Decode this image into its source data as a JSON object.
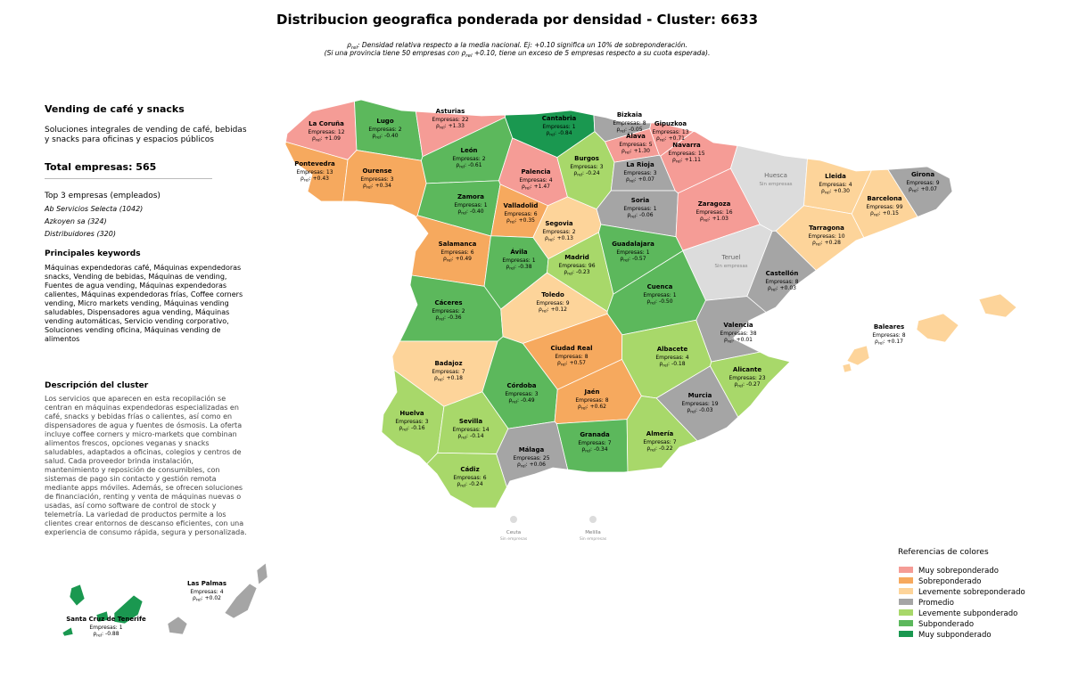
{
  "header": {
    "title": "Distribucion geografica ponderada por densidad - Cluster: 6633",
    "note_lines": [
      [
        {
          "t": "ρ"
        },
        {
          "t": "rel",
          "sub": true
        },
        {
          "t": ": Densidad relativa respecto a la media nacional. Ej: +0.10 significa un 10% de sobreponderación."
        }
      ],
      [
        {
          "t": "(Si una provincia tiene 50 empresas con "
        },
        {
          "t": "ρ"
        },
        {
          "t": "rel",
          "sub": true
        },
        {
          "t": " +0.10, tiene un exceso de 5 empresas respecto a su cuota esperada)."
        }
      ]
    ]
  },
  "panel": {
    "title": "Vending de café y snacks",
    "intro": "Soluciones integrales de vending de café, bebidas y snacks para oficinas y espacios públicos",
    "total": "Total empresas: 565",
    "top_title": "Top 3 empresas (empleados)",
    "top": [
      "Ab Servicios Selecta (1042)",
      "Azkoyen sa (324)",
      "Distribuidores (320)"
    ],
    "keywords_title": "Principales keywords",
    "keywords": "Máquinas expendedoras café, Máquinas expendedoras snacks, Vending de bebidas, Máquinas de vending, Fuentes de agua vending, Máquinas expendedoras calientes, Máquinas expendedoras frías, Coffee corners vending, Micro markets vending, Máquinas vending saludables, Dispensadores agua vending, Máquinas vending automáticas, Servicio vending corporativo, Soluciones vending oficina, Máquinas vending de alimentos",
    "description_title": "Descripción del cluster",
    "description": "Los servicios que aparecen en esta recopilación se centran en máquinas expendedoras especializadas en café, snacks y bebidas frías o calientes, así como en dispensadores de agua y fuentes de ósmosis. La oferta incluye coffee corners y micro-markets que combinan alimentos frescos, opciones veganas y snacks saludables, adaptados a oficinas, colegios y centros de salud. Cada proveedor brinda instalación, mantenimiento y reposición de consumibles, con sistemas de pago sin contacto y gestión remota mediante apps móviles. Además, se ofrecen soluciones de financiación, renting y venta de máquinas nuevas o usadas, así como software de control de stock y telemetría. La variedad de productos permite a los clientes crear entornos de descanso eficientes, con una experiencia de consumo rápida, segura y personalizada."
  },
  "map": {
    "empresas_label": "Empresas:",
    "rho_label": {
      "symbol": "ρ",
      "sub": "rel",
      "after": ":"
    },
    "provinces": [
      {
        "name": "La Coruña",
        "empresas": 12,
        "rho": "+1.09",
        "color": "#f59c96"
      },
      {
        "name": "Lugo",
        "empresas": 2,
        "rho": "-0.40",
        "color": "#5cb85c"
      },
      {
        "name": "Asturias",
        "empresas": 22,
        "rho": "+1.33",
        "color": "#f59c96"
      },
      {
        "name": "Cantabria",
        "empresas": 1,
        "rho": "-0.84",
        "color": "#1a9850"
      },
      {
        "name": "Bizkaia",
        "empresas": 8,
        "rho": "-0.05",
        "color": "#a5a5a5"
      },
      {
        "name": "Gipuzkoa",
        "empresas": 13,
        "rho": "+0.71",
        "color": "#f59c96"
      },
      {
        "name": "Álava",
        "empresas": 5,
        "rho": "+1.30",
        "color": "#f59c96"
      },
      {
        "name": "Navarra",
        "empresas": 15,
        "rho": "+1.11",
        "color": "#f59c96"
      },
      {
        "name": "Pontevedra",
        "empresas": 13,
        "rho": "+0.43",
        "color": "#f6a95e"
      },
      {
        "name": "Ourense",
        "empresas": 3,
        "rho": "+0.34",
        "color": "#f6a95e"
      },
      {
        "name": "León",
        "empresas": 2,
        "rho": "-0.61",
        "color": "#5cb85c"
      },
      {
        "name": "Palencia",
        "empresas": 4,
        "rho": "+1.47",
        "color": "#f59c96"
      },
      {
        "name": "Burgos",
        "empresas": 3,
        "rho": "-0.24",
        "color": "#a8d86a"
      },
      {
        "name": "La Rioja",
        "empresas": 3,
        "rho": "+0.07",
        "color": "#a5a5a5"
      },
      {
        "name": "Huesca",
        "note": "Sin empresas",
        "color": "#dcdcdc"
      },
      {
        "name": "Lleida",
        "empresas": 4,
        "rho": "+0.30",
        "color": "#fdd49a"
      },
      {
        "name": "Girona",
        "empresas": 9,
        "rho": "+0.07",
        "color": "#a5a5a5"
      },
      {
        "name": "Zamora",
        "empresas": 1,
        "rho": "-0.40",
        "color": "#5cb85c"
      },
      {
        "name": "Valladolid",
        "empresas": 6,
        "rho": "+0.35",
        "color": "#f6a95e"
      },
      {
        "name": "Soria",
        "empresas": 1,
        "rho": "-0.06",
        "color": "#a5a5a5"
      },
      {
        "name": "Zaragoza",
        "empresas": 16,
        "rho": "+1.03",
        "color": "#f59c96"
      },
      {
        "name": "Barcelona",
        "empresas": 99,
        "rho": "+0.15",
        "color": "#fdd49a"
      },
      {
        "name": "Tarragona",
        "empresas": 10,
        "rho": "+0.28",
        "color": "#fdd49a"
      },
      {
        "name": "Salamanca",
        "empresas": 6,
        "rho": "+0.49",
        "color": "#f6a95e"
      },
      {
        "name": "Segovia",
        "empresas": 2,
        "rho": "+0.13",
        "color": "#fdd49a"
      },
      {
        "name": "Ávila",
        "empresas": 1,
        "rho": "-0.38",
        "color": "#5cb85c"
      },
      {
        "name": "Madrid",
        "empresas": 96,
        "rho": "-0.23",
        "color": "#a8d86a"
      },
      {
        "name": "Guadalajara",
        "empresas": 1,
        "rho": "-0.57",
        "color": "#5cb85c"
      },
      {
        "name": "Teruel",
        "note": "Sin empresas",
        "color": "#dcdcdc"
      },
      {
        "name": "Castellón",
        "empresas": 8,
        "rho": "+0.03",
        "color": "#a5a5a5"
      },
      {
        "name": "Cáceres",
        "empresas": 2,
        "rho": "-0.36",
        "color": "#5cb85c"
      },
      {
        "name": "Toledo",
        "empresas": 9,
        "rho": "+0.12",
        "color": "#fdd49a"
      },
      {
        "name": "Cuenca",
        "empresas": 1,
        "rho": "-0.50",
        "color": "#5cb85c"
      },
      {
        "name": "Valencia",
        "empresas": 38,
        "rho": "+0.01",
        "color": "#a5a5a5"
      },
      {
        "name": "Ciudad Real",
        "empresas": 8,
        "rho": "+0.57",
        "color": "#f6a95e"
      },
      {
        "name": "Badajoz",
        "empresas": 7,
        "rho": "+0.18",
        "color": "#fdd49a"
      },
      {
        "name": "Albacete",
        "empresas": 4,
        "rho": "-0.18",
        "color": "#a8d86a"
      },
      {
        "name": "Alicante",
        "empresas": 23,
        "rho": "-0.27",
        "color": "#a8d86a"
      },
      {
        "name": "Córdoba",
        "empresas": 3,
        "rho": "-0.49",
        "color": "#5cb85c"
      },
      {
        "name": "Jaén",
        "empresas": 8,
        "rho": "+0.62",
        "color": "#f6a95e"
      },
      {
        "name": "Murcia",
        "empresas": 19,
        "rho": "-0.03",
        "color": "#a5a5a5"
      },
      {
        "name": "Huelva",
        "empresas": 3,
        "rho": "-0.16",
        "color": "#a8d86a"
      },
      {
        "name": "Sevilla",
        "empresas": 14,
        "rho": "-0.14",
        "color": "#a8d86a"
      },
      {
        "name": "Granada",
        "empresas": 7,
        "rho": "-0.34",
        "color": "#5cb85c"
      },
      {
        "name": "Almería",
        "empresas": 7,
        "rho": "-0.22",
        "color": "#a8d86a"
      },
      {
        "name": "Málaga",
        "empresas": 25,
        "rho": "+0.06",
        "color": "#a5a5a5"
      },
      {
        "name": "Cádiz",
        "empresas": 6,
        "rho": "-0.24",
        "color": "#a8d86a"
      },
      {
        "name": "Baleares",
        "empresas": 8,
        "rho": "+0.17",
        "color": "#fdd49a"
      },
      {
        "name": "Las Palmas",
        "empresas": 4,
        "rho": "+0.02",
        "color": "#a5a5a5"
      },
      {
        "name": "Santa Cruz de Tenerife",
        "empresas": 1,
        "rho": "-0.88",
        "color": "#1a9850"
      }
    ],
    "cities": [
      {
        "name": "Ceuta",
        "note": "Sin empresas",
        "color": "#dcdcdc"
      },
      {
        "name": "Melilla",
        "note": "Sin empresas",
        "color": "#dcdcdc"
      }
    ]
  },
  "legend": {
    "title": "Referencias de colores",
    "entries": [
      {
        "name": "Muy sobreponderado",
        "color": "#f59c96"
      },
      {
        "name": "Sobreponderado",
        "color": "#f6a95e"
      },
      {
        "name": "Levemente sobreponderado",
        "color": "#fdd49a"
      },
      {
        "name": "Promedio",
        "color": "#a5a5a5"
      },
      {
        "name": "Levemente subponderado",
        "color": "#a8d86a"
      },
      {
        "name": "Subponderado",
        "color": "#5cb85c"
      },
      {
        "name": "Muy subponderado",
        "color": "#1a9850"
      }
    ]
  }
}
